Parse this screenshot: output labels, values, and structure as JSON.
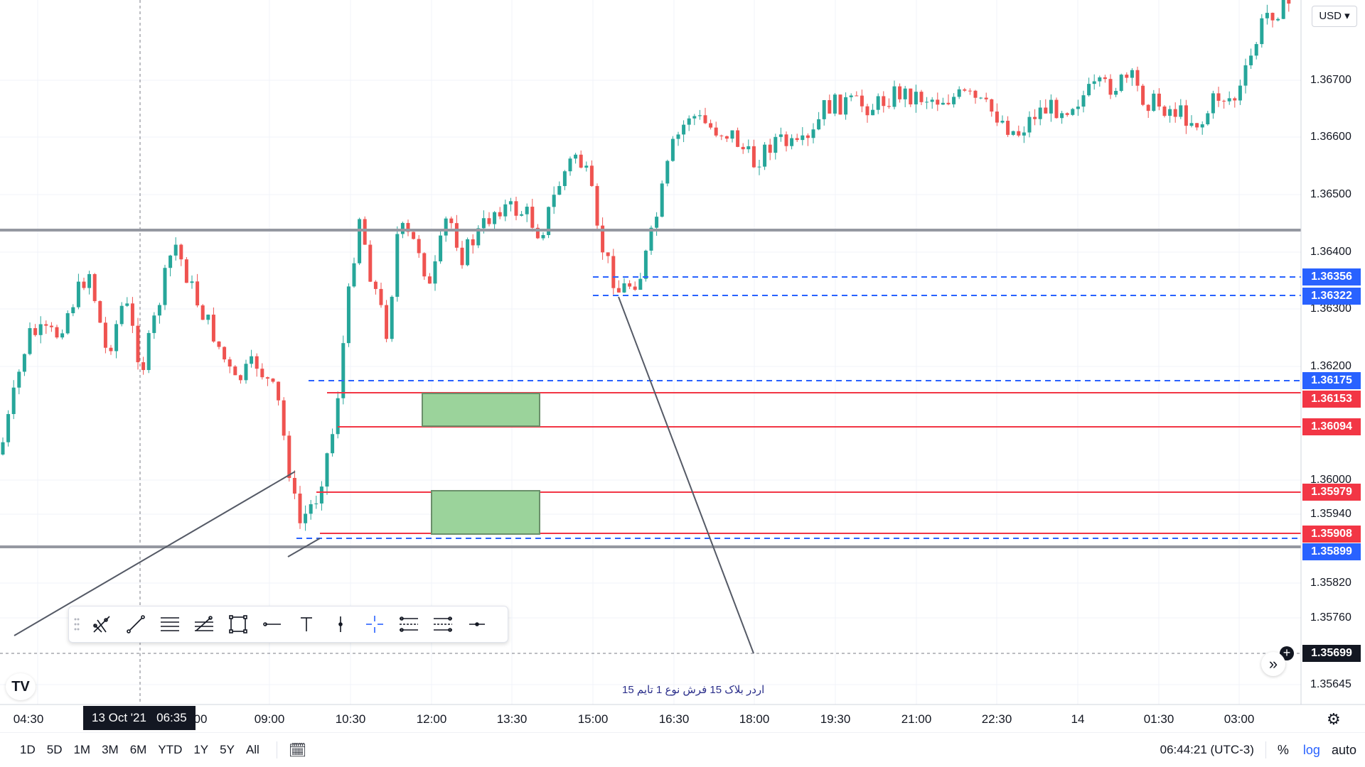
{
  "currency_button": "USD",
  "price_axis": {
    "labels": [
      "1.36700",
      "1.36600",
      "1.36500",
      "1.36400",
      "1.36300",
      "1.36200",
      "1.36000",
      "1.35940",
      "1.35820",
      "1.35760",
      "1.35645"
    ]
  },
  "price_boxes": [
    {
      "value": "1.36356",
      "color": "#2962ff"
    },
    {
      "value": "1.36322",
      "color": "#2962ff"
    },
    {
      "value": "1.36175",
      "color": "#2962ff"
    },
    {
      "value": "1.36153",
      "color": "#f23645"
    },
    {
      "value": "1.36094",
      "color": "#f23645"
    },
    {
      "value": "1.35979",
      "color": "#f23645"
    },
    {
      "value": "1.35908",
      "color": "#f23645"
    },
    {
      "value": "1.35899",
      "color": "#2962ff"
    },
    {
      "value": "1.35699",
      "color": "#131722"
    }
  ],
  "time_axis": [
    "04:30",
    "00",
    "09:00",
    "10:30",
    "12:00",
    "13:30",
    "15:00",
    "16:30",
    "18:00",
    "19:30",
    "21:00",
    "22:30",
    "14",
    "01:30",
    "03:00"
  ],
  "crosshair": {
    "date": "13 Oct '21",
    "time": "06:35"
  },
  "annotation": "اردر بلاک 15 فرش نوع 1 تایم 15",
  "range_buttons": [
    "1D",
    "5D",
    "1M",
    "3M",
    "6M",
    "YTD",
    "1Y",
    "5Y",
    "All"
  ],
  "clock": "06:44:21 (UTC-3)",
  "right_controls": {
    "percent": "%",
    "log": "log",
    "auto": "auto"
  },
  "colors": {
    "up": "#26a69a",
    "down": "#ef5350",
    "accent": "#2962ff",
    "level": "#f23645",
    "zone": "#9bd39b"
  },
  "toolbar_icons": [
    "grip-icon",
    "multi-line-icon",
    "trend-line-icon",
    "parallel-channel-icon",
    "fib-icon",
    "rectangle-icon",
    "horizontal-ray-icon",
    "text-icon",
    "vertical-line-icon",
    "crosshair-icon",
    "position-icon",
    "forecast-icon",
    "horizontal-line-icon"
  ]
}
